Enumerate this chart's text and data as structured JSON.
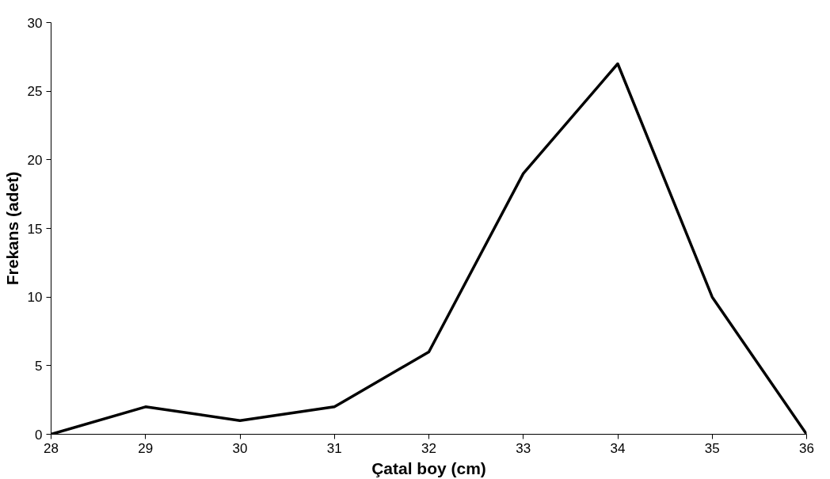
{
  "chart_data": {
    "type": "line",
    "xlabel": "Çatal boy (cm)",
    "ylabel": "Frekans (adet)",
    "x": [
      28,
      29,
      30,
      31,
      32,
      33,
      34,
      35,
      36
    ],
    "series": [
      {
        "color": "#000000",
        "values": [
          0,
          2,
          1,
          2,
          6,
          19,
          27,
          10,
          0
        ]
      }
    ],
    "xlim": [
      28,
      36
    ],
    "xticks": [
      28,
      29,
      30,
      31,
      32,
      33,
      34,
      35,
      36
    ],
    "ylim": [
      0,
      30
    ],
    "yticks": [
      0,
      5,
      10,
      15,
      20,
      25,
      30
    ],
    "grid": false,
    "marker": "none",
    "line_style": "solid"
  }
}
